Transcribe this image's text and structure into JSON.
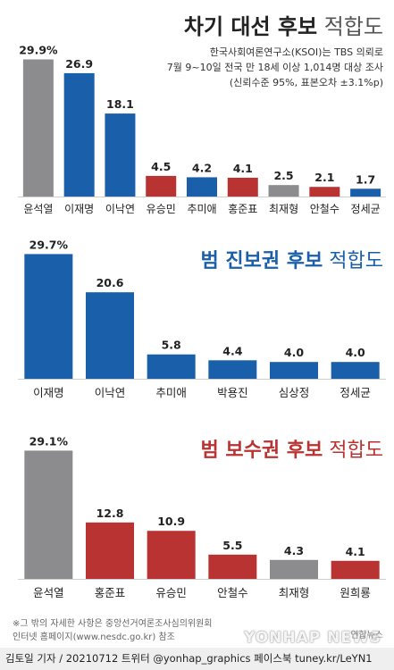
{
  "header": {
    "title_bold": "차기 대선 후보",
    "title_light": "적합도",
    "source_lines": [
      "한국사회여론연구소(KSOI)는 TBS 의뢰로",
      "7월 9~10일 전국 만 18세 이상 1,014명 대상 조사",
      "(신뢰수준 95%, 표본오차 ±3.1%p)"
    ]
  },
  "colors": {
    "gray": "#8c8c8e",
    "blue": "#1a5faa",
    "red": "#b83331",
    "title_blue": "#1a5faa",
    "title_red": "#b83331"
  },
  "chart_data": [
    {
      "type": "bar",
      "title": "차기 대선 후보 적합도",
      "categories": [
        "윤석열",
        "이재명",
        "이낙연",
        "유승민",
        "추미애",
        "홍준표",
        "최재형",
        "안철수",
        "정세균"
      ],
      "values": [
        29.9,
        26.9,
        18.1,
        4.5,
        4.2,
        4.1,
        2.5,
        2.1,
        1.7
      ],
      "labels": [
        "29.9%",
        "26.9",
        "18.1",
        "4.5",
        "4.2",
        "4.1",
        "2.5",
        "2.1",
        "1.7"
      ],
      "bar_colors": [
        "gray",
        "blue",
        "blue",
        "red",
        "blue",
        "red",
        "gray",
        "red",
        "blue"
      ],
      "ylim": [
        0,
        30
      ]
    },
    {
      "type": "bar",
      "title": "범 진보권 후보 적합도",
      "categories": [
        "이재명",
        "이낙연",
        "추미애",
        "박용진",
        "심상정",
        "정세균"
      ],
      "values": [
        29.7,
        20.6,
        5.8,
        4.4,
        4.0,
        4.0
      ],
      "labels": [
        "29.7%",
        "20.6",
        "5.8",
        "4.4",
        "4.0",
        "4.0"
      ],
      "bar_colors": [
        "blue",
        "blue",
        "blue",
        "blue",
        "blue",
        "blue"
      ],
      "ylim": [
        0,
        30
      ]
    },
    {
      "type": "bar",
      "title": "범 보수권 후보 적합도",
      "categories": [
        "윤석열",
        "홍준표",
        "유승민",
        "안철수",
        "최재형",
        "원희룡"
      ],
      "values": [
        29.1,
        12.8,
        10.9,
        5.5,
        4.3,
        4.1
      ],
      "labels": [
        "29.1%",
        "12.8",
        "10.9",
        "5.5",
        "4.3",
        "4.1"
      ],
      "bar_colors": [
        "gray",
        "red",
        "red",
        "red",
        "gray",
        "red"
      ],
      "ylim": [
        0,
        30
      ]
    }
  ],
  "section_titles": [
    {
      "bold": "",
      "light": ""
    },
    {
      "bold": "범 진보권 후보",
      "light": "적합도"
    },
    {
      "bold": "범 보수권 후보",
      "light": "적합도"
    }
  ],
  "footnote": [
    "※그 밖의 자세한 사항은 중앙선거여론조사심의위원회",
    "인터넷 홈페이지(www.nesdc.go.kr) 참조"
  ],
  "credit": "김토일 기자 / 20210712 트위터 @yonhap_graphics  페이스북 tuney.kr/LeYN1",
  "watermark": "YONHAP NEWS",
  "watermark_logo": "연합뉴스"
}
